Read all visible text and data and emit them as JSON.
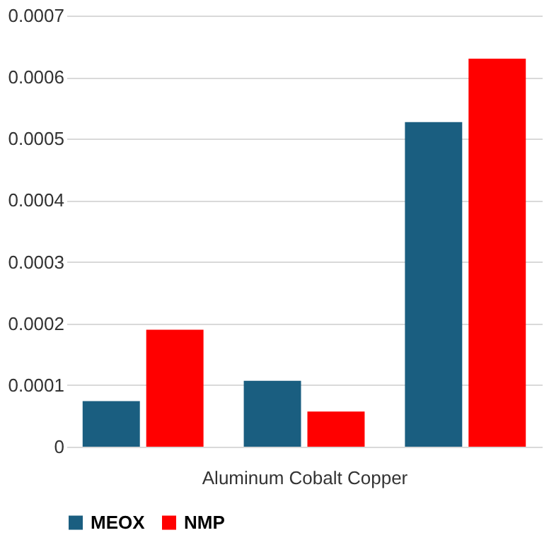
{
  "chart_data": {
    "type": "bar",
    "xlabel": "Aluminum Cobalt Copper",
    "categories": [
      null,
      null,
      null
    ],
    "series": [
      {
        "name": "MEOX",
        "color": "#1a5e80",
        "values": [
          7.4e-05,
          0.000107,
          0.000527
        ]
      },
      {
        "name": "NMP",
        "color": "#ff0000",
        "values": [
          0.00019,
          5.7e-05,
          0.00063
        ]
      }
    ],
    "ylim": [
      0,
      0.0007
    ],
    "yticks": [
      0,
      0.0001,
      0.0002,
      0.0003,
      0.0004,
      0.0005,
      0.0006,
      0.0007
    ],
    "grid": "y",
    "legend": "bottom"
  }
}
